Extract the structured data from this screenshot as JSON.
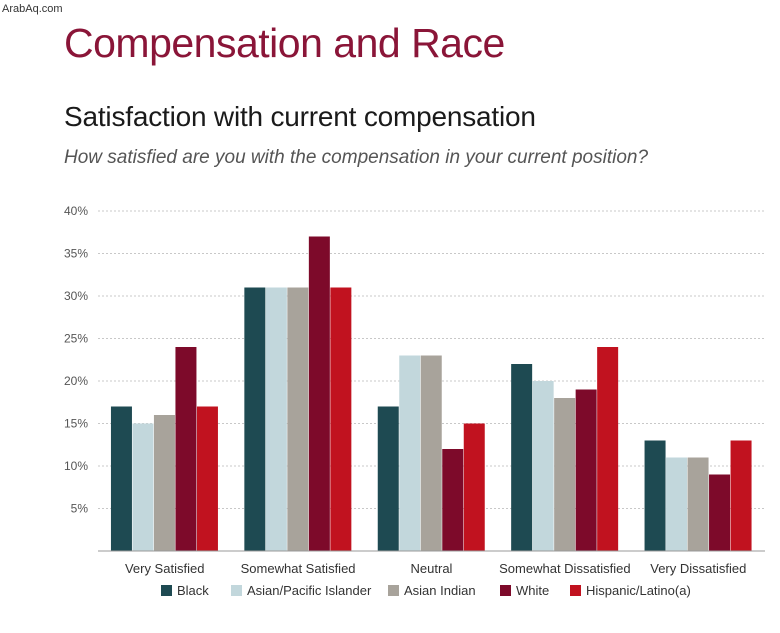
{
  "watermark": "ArabAq.com",
  "header": {
    "title": "Compensation and Race",
    "subtitle": "Satisfaction with current compensation",
    "question": "How satisfied are you with the compensation in your current position?"
  },
  "chart_data": {
    "type": "bar",
    "categories": [
      "Very Satisfied",
      "Somewhat Satisfied",
      "Neutral",
      "Somewhat Dissatisfied",
      "Very Dissatisfied"
    ],
    "series": [
      {
        "name": "Black",
        "color": "#1e4a52",
        "values": [
          17,
          31,
          17,
          22,
          13
        ]
      },
      {
        "name": "Asian/Pacific Islander",
        "color": "#c2d7dc",
        "values": [
          15,
          31,
          23,
          20,
          11
        ]
      },
      {
        "name": "Asian Indian",
        "color": "#a8a39b",
        "values": [
          16,
          31,
          23,
          18,
          11
        ]
      },
      {
        "name": "White",
        "color": "#7d0a2a",
        "values": [
          24,
          37,
          12,
          19,
          9
        ]
      },
      {
        "name": "Hispanic/Latino(a)",
        "color": "#c1121f",
        "values": [
          17,
          31,
          15,
          24,
          13
        ]
      }
    ],
    "yticks": [
      "5%",
      "10%",
      "15%",
      "20%",
      "25%",
      "30%",
      "35%",
      "40%"
    ],
    "ylim": [
      0,
      40
    ],
    "grid": true,
    "legend_position": "bottom"
  }
}
